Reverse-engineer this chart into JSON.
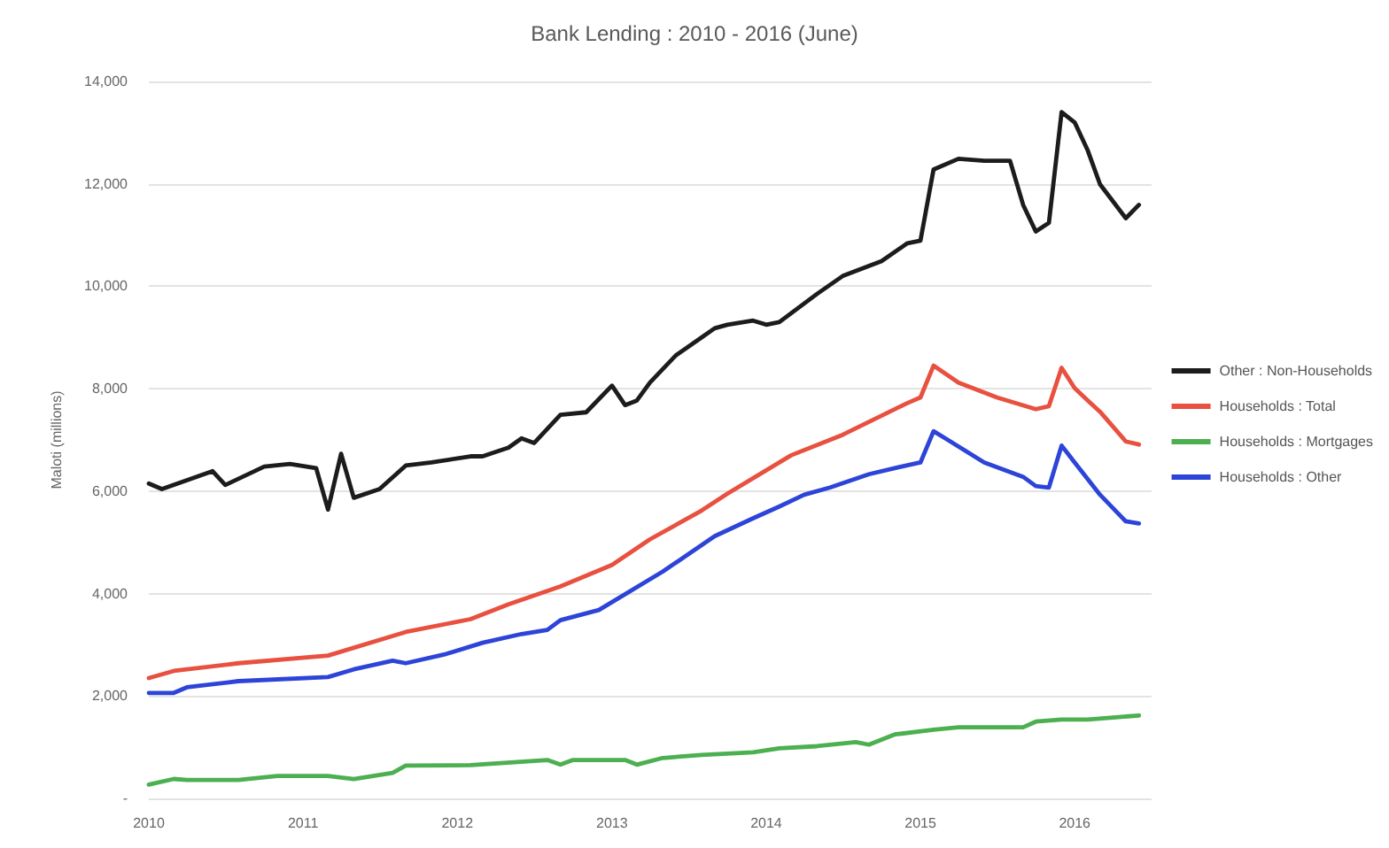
{
  "chart_data": {
    "type": "line",
    "title": "Bank Lending : 2010 - 2016 (June)",
    "ylabel": "Maloti (millions)",
    "xlim": [
      "2010-01",
      "2016-07"
    ],
    "xticks": [
      "2010",
      "2011",
      "2012",
      "2013",
      "2014",
      "2015",
      "2016"
    ],
    "ylim": [
      0,
      14000
    ],
    "yticks": [
      {
        "value": 0,
        "label": "-"
      },
      {
        "value": 2000,
        "label": "2,000"
      },
      {
        "value": 4000,
        "label": "4,000"
      },
      {
        "value": 6000,
        "label": "6,000"
      },
      {
        "value": 8000,
        "label": "8,000"
      },
      {
        "value": 10000,
        "label": "10,000"
      },
      {
        "value": 12000,
        "label": "12,000"
      },
      {
        "value": 14000,
        "label": "14,000"
      }
    ],
    "grid": "y",
    "legend": "right",
    "marker": "none",
    "series": [
      {
        "name": "Other : Non-Households",
        "color": "#1c1c1c",
        "x": [
          "2010-01",
          "2010-02",
          "2010-06",
          "2010-07",
          "2010-10",
          "2010-12",
          "2011-02",
          "2011-03",
          "2011-04",
          "2011-05",
          "2011-07",
          "2011-09",
          "2011-11",
          "2012-02",
          "2012-03",
          "2012-05",
          "2012-06",
          "2012-07",
          "2012-09",
          "2012-11",
          "2013-01",
          "2013-02",
          "2013-03",
          "2013-04",
          "2013-06",
          "2013-08",
          "2013-09",
          "2013-10",
          "2013-12",
          "2014-01",
          "2014-02",
          "2014-05",
          "2014-07",
          "2014-10",
          "2014-12",
          "2015-01",
          "2015-02",
          "2015-04",
          "2015-06",
          "2015-08",
          "2015-09",
          "2015-10",
          "2015-11",
          "2015-12",
          "2016-01",
          "2016-02",
          "2016-03",
          "2016-05",
          "2016-06"
        ],
        "values": [
          6150,
          6040,
          6390,
          6120,
          6480,
          6530,
          6450,
          5640,
          6730,
          5870,
          6040,
          6500,
          6560,
          6680,
          6680,
          6850,
          7030,
          6940,
          7490,
          7540,
          8060,
          7680,
          7770,
          8120,
          8650,
          9000,
          9180,
          9250,
          9330,
          9250,
          9300,
          9850,
          10200,
          10490,
          10840,
          10890,
          12280,
          12490,
          12450,
          12450,
          11590,
          11070,
          11240,
          13400,
          13200,
          12650,
          11990,
          11330,
          11590
        ]
      },
      {
        "name": "Households : Total",
        "color": "#e8503f",
        "x": [
          "2010-01",
          "2010-03",
          "2010-08",
          "2011-03",
          "2011-09",
          "2012-02",
          "2012-05",
          "2012-09",
          "2013-01",
          "2013-04",
          "2013-08",
          "2013-10",
          "2014-03",
          "2014-07",
          "2014-12",
          "2015-01",
          "2015-02",
          "2015-04",
          "2015-07",
          "2015-10",
          "2015-11",
          "2015-12",
          "2016-01",
          "2016-02",
          "2016-03",
          "2016-05",
          "2016-06"
        ],
        "values": [
          2350,
          2490,
          2640,
          2790,
          3250,
          3500,
          3790,
          4140,
          4560,
          5060,
          5620,
          5950,
          6700,
          7100,
          7720,
          7830,
          8450,
          8120,
          7830,
          7600,
          7660,
          8410,
          8010,
          7770,
          7550,
          6970,
          6910
        ]
      },
      {
        "name": "Households : Mortgages",
        "color": "#4caf50",
        "x": [
          "2010-01",
          "2010-03",
          "2010-04",
          "2010-08",
          "2010-11",
          "2011-03",
          "2011-05",
          "2011-08",
          "2011-09",
          "2012-02",
          "2012-08",
          "2012-09",
          "2012-10",
          "2013-02",
          "2013-03",
          "2013-05",
          "2013-08",
          "2013-12",
          "2014-02",
          "2014-05",
          "2014-08",
          "2014-09",
          "2014-11",
          "2015-02",
          "2015-04",
          "2015-09",
          "2015-10",
          "2015-12",
          "2016-02",
          "2016-06"
        ],
        "values": [
          270,
          380,
          360,
          360,
          440,
          440,
          380,
          500,
          640,
          650,
          750,
          660,
          750,
          750,
          660,
          790,
          850,
          900,
          980,
          1020,
          1100,
          1050,
          1250,
          1340,
          1390,
          1390,
          1500,
          1540,
          1540,
          1620
        ]
      },
      {
        "name": "Households : Other",
        "color": "#2d44d8",
        "x": [
          "2010-01",
          "2010-03",
          "2010-04",
          "2010-08",
          "2011-03",
          "2011-05",
          "2011-08",
          "2011-09",
          "2011-12",
          "2012-03",
          "2012-06",
          "2012-08",
          "2012-09",
          "2012-12",
          "2013-05",
          "2013-07",
          "2013-09",
          "2013-12",
          "2014-02",
          "2014-04",
          "2014-06",
          "2014-09",
          "2014-11",
          "2015-01",
          "2015-02",
          "2015-03",
          "2015-06",
          "2015-09",
          "2015-10",
          "2015-11",
          "2015-12",
          "2016-01",
          "2016-03",
          "2016-05",
          "2016-06"
        ],
        "values": [
          2060,
          2060,
          2170,
          2290,
          2370,
          2520,
          2690,
          2640,
          2810,
          3040,
          3210,
          3290,
          3480,
          3680,
          4430,
          4770,
          5120,
          5470,
          5700,
          5930,
          6070,
          6330,
          6450,
          6560,
          7170,
          7030,
          6560,
          6280,
          6100,
          6070,
          6890,
          6560,
          5930,
          5410,
          5370
        ]
      }
    ]
  }
}
